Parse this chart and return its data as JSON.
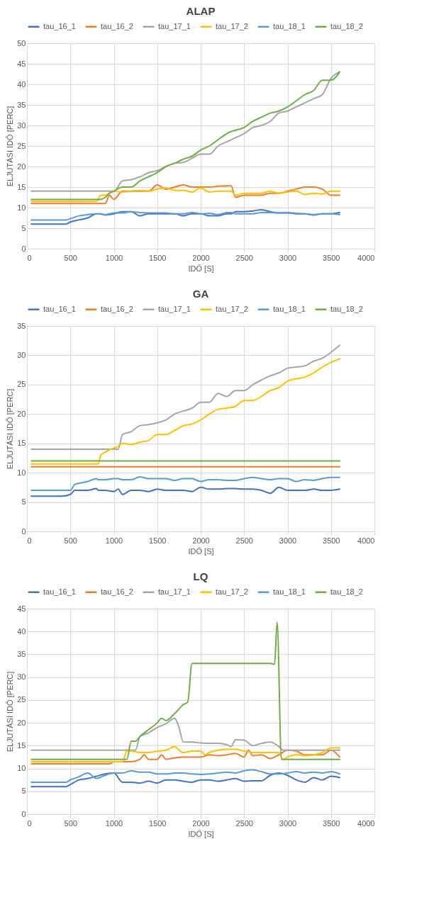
{
  "chart_data": [
    {
      "type": "line",
      "title": "ALAP",
      "xlabel": "IDŐ [S]",
      "ylabel": "ELJUTÁSI IDŐ [PERC]",
      "xlim": [
        0,
        4000
      ],
      "xticks": [
        0,
        500,
        1000,
        1500,
        2000,
        2500,
        3000,
        3500,
        4000
      ],
      "ylim": [
        0,
        50
      ],
      "yticks": [
        0,
        5,
        10,
        15,
        20,
        25,
        30,
        35,
        40,
        45,
        50
      ],
      "grid": true,
      "legend": "top",
      "x": [
        50,
        450,
        500,
        600,
        700,
        800,
        850,
        900,
        950,
        1000,
        1100,
        1200,
        1300,
        1400,
        1500,
        1600,
        1700,
        1800,
        1900,
        2000,
        2100,
        2200,
        2300,
        2350,
        2400,
        2500,
        2600,
        2700,
        2800,
        2900,
        3000,
        3100,
        3200,
        3300,
        3400,
        3500,
        3600
      ],
      "series": [
        {
          "name": "tau_16_1",
          "color": "#4472c4",
          "values": [
            6,
            6,
            6.5,
            7,
            7.5,
            8.5,
            8.5,
            8.2,
            8.3,
            8.5,
            9,
            9,
            8,
            8.5,
            8.5,
            8.5,
            8.5,
            8,
            8.5,
            8.5,
            8,
            8,
            8.5,
            8.5,
            9,
            9,
            9.2,
            9.5,
            9,
            8.7,
            8.7,
            8.5,
            8.5,
            8.2,
            8.5,
            8.5,
            8.8
          ]
        },
        {
          "name": "tau_16_2",
          "color": "#ed7d31",
          "values": [
            11,
            11,
            11,
            11,
            11,
            11,
            11,
            11,
            13,
            12,
            14,
            14,
            14,
            14,
            15.5,
            14.5,
            15,
            15.5,
            15,
            15,
            15,
            15.2,
            15.3,
            15.3,
            12.5,
            13,
            13,
            13,
            13.5,
            13.5,
            14,
            14.5,
            15,
            15,
            14.5,
            13,
            13
          ]
        },
        {
          "name": "tau_17_1",
          "color": "#a5a5a5",
          "values": [
            14,
            14,
            14,
            14,
            14,
            14,
            14,
            14,
            14,
            14,
            16.5,
            16.8,
            17.5,
            18.5,
            19,
            20,
            20.8,
            21,
            22,
            23,
            23,
            25,
            26,
            26.5,
            27,
            28,
            29.5,
            30,
            31,
            33,
            33.5,
            34.5,
            35.5,
            36.5,
            37.5,
            41.5,
            43
          ]
        },
        {
          "name": "tau_17_2",
          "color": "#ffc000",
          "values": [
            11.5,
            11.5,
            11.5,
            11.5,
            11.5,
            11.5,
            13,
            13,
            13.5,
            14,
            13.8,
            14,
            14.2,
            14,
            14.5,
            14.8,
            14.2,
            14.2,
            13.8,
            14.8,
            13.8,
            14,
            14,
            14,
            13,
            13.5,
            13.5,
            13.5,
            14,
            13.5,
            13.8,
            14,
            13.2,
            13.5,
            13.3,
            14,
            14
          ]
        },
        {
          "name": "tau_18_1",
          "color": "#5b9bd5",
          "values": [
            7,
            7,
            7.3,
            8,
            8.3,
            8.5,
            8.4,
            8.3,
            8.5,
            8.7,
            8.7,
            9,
            8.8,
            8.7,
            8.7,
            8.7,
            8.5,
            8.5,
            8.8,
            8.5,
            8.6,
            8.3,
            8.8,
            8.8,
            8.5,
            8.5,
            8.5,
            8.8,
            8.8,
            8.7,
            8.8,
            8.6,
            8.5,
            8.3,
            8.5,
            8.5,
            8.3
          ]
        },
        {
          "name": "tau_18_2",
          "color": "#70ad47",
          "values": [
            12,
            12,
            12,
            12,
            12,
            12,
            12,
            12.5,
            13.5,
            14,
            15,
            15,
            16.5,
            17.5,
            18.5,
            20,
            20.8,
            21.8,
            22.5,
            24,
            25,
            26.5,
            28,
            28.5,
            28.8,
            29.5,
            31,
            32,
            33,
            33.5,
            34.5,
            36,
            37.5,
            38.5,
            41,
            41,
            43
          ]
        }
      ]
    },
    {
      "type": "line",
      "title": "GA",
      "xlabel": "IDŐ [S]",
      "ylabel": "ELJUTÁSI IDŐ [PERC]",
      "xlim": [
        0,
        4000
      ],
      "xticks": [
        0,
        500,
        1000,
        1500,
        2000,
        2500,
        3000,
        3500,
        4000
      ],
      "ylim": [
        0,
        35
      ],
      "yticks": [
        0,
        5,
        10,
        15,
        20,
        25,
        30,
        35
      ],
      "grid": true,
      "legend": "top",
      "x": [
        50,
        400,
        500,
        550,
        600,
        700,
        800,
        820,
        850,
        900,
        1000,
        1050,
        1100,
        1200,
        1300,
        1400,
        1500,
        1600,
        1700,
        1800,
        1900,
        2000,
        2100,
        2200,
        2300,
        2400,
        2500,
        2600,
        2700,
        2800,
        2900,
        3000,
        3100,
        3200,
        3300,
        3400,
        3500,
        3600
      ],
      "series": [
        {
          "name": "tau_16_1",
          "color": "#4472c4",
          "values": [
            6,
            6,
            6.3,
            7,
            7,
            7,
            7.3,
            7,
            7,
            7,
            6.8,
            7.2,
            6.3,
            7,
            7,
            6.8,
            7.2,
            7,
            7,
            7,
            6.8,
            7.5,
            7.2,
            7.2,
            7.3,
            7.3,
            7.2,
            7.2,
            7,
            6.5,
            7.5,
            7,
            7,
            7,
            7.2,
            7,
            7,
            7.2
          ]
        },
        {
          "name": "tau_16_2",
          "color": "#ed7d31",
          "x": [
            50,
            3600
          ],
          "values": [
            11,
            11
          ]
        },
        {
          "name": "tau_17_1",
          "color": "#a5a5a5",
          "values": [
            14,
            14,
            14,
            14,
            14,
            14,
            14,
            14,
            14,
            14,
            14,
            14,
            16.5,
            17,
            18,
            18.2,
            18.5,
            19,
            20,
            20.5,
            21,
            22,
            22,
            23.5,
            23,
            24,
            24,
            25,
            25.8,
            26.5,
            27,
            27.8,
            28,
            28.2,
            29,
            29.5,
            30.5,
            31.7
          ]
        },
        {
          "name": "tau_17_2",
          "color": "#ffc000",
          "values": [
            11.5,
            11.5,
            11.5,
            11.5,
            11.5,
            11.5,
            11.5,
            11.5,
            13,
            13.5,
            14.2,
            14.5,
            15,
            14.8,
            15.2,
            15.5,
            16.5,
            16.5,
            17.2,
            18,
            18.3,
            19,
            20,
            20.8,
            21,
            21.3,
            22.3,
            22.3,
            23,
            24,
            24.5,
            25.6,
            26,
            26.3,
            27,
            28,
            28.8,
            29.4
          ]
        },
        {
          "name": "tau_18_1",
          "color": "#5b9bd5",
          "values": [
            7,
            7,
            7,
            8,
            8.2,
            8.5,
            9,
            8.8,
            8.8,
            8.8,
            9,
            9,
            8.8,
            8.8,
            9.3,
            9,
            9,
            9,
            8.7,
            9,
            9,
            8.5,
            8.8,
            8.8,
            8.7,
            8.7,
            9,
            9.2,
            9,
            8.8,
            9,
            9,
            8.5,
            8.8,
            8.7,
            9,
            9.2,
            9.2
          ]
        },
        {
          "name": "tau_18_2",
          "color": "#70ad47",
          "x": [
            50,
            3600
          ],
          "values": [
            12,
            12
          ]
        }
      ]
    },
    {
      "type": "line",
      "title": "LQ",
      "xlabel": "IDŐ [S]",
      "ylabel": "ELJUTÁSI IDŐ [PERC]",
      "xlim": [
        0,
        4000
      ],
      "xticks": [
        0,
        500,
        1000,
        1500,
        2000,
        2500,
        3000,
        3500,
        4000
      ],
      "ylim": [
        0,
        45
      ],
      "yticks": [
        0,
        5,
        10,
        15,
        20,
        25,
        30,
        35,
        40,
        45
      ],
      "grid": true,
      "legend": "top",
      "x": [
        50,
        450,
        500,
        600,
        700,
        800,
        900,
        1000,
        1100,
        1200,
        1300,
        1400,
        1500,
        1600,
        1700,
        1800,
        1900,
        2000,
        2100,
        2200,
        2300,
        2400,
        2500,
        2600,
        2700,
        2800,
        2900,
        3000,
        3100,
        3200,
        3300,
        3400,
        3500,
        3600
      ],
      "series": [
        {
          "name": "tau_16_1",
          "color": "#4472c4",
          "values": [
            6,
            6,
            6.5,
            7.5,
            7.8,
            8.3,
            8.8,
            9,
            7,
            7,
            6.8,
            7.2,
            6.8,
            7.5,
            7.5,
            7.2,
            7,
            7.5,
            7.5,
            7.2,
            7.5,
            7.8,
            7.2,
            7.3,
            7.3,
            8.5,
            9,
            8.5,
            7.5,
            7,
            8,
            7.5,
            8.3,
            8
          ]
        },
        {
          "name": "tau_16_2",
          "color": "#ed7d31",
          "x": [
            50,
            950,
            1000,
            1100,
            1200,
            1300,
            1350,
            1400,
            1500,
            1550,
            1600,
            1700,
            1800,
            1900,
            2000,
            2100,
            2200,
            2300,
            2400,
            2500,
            2550,
            2600,
            2700,
            2800,
            2900,
            3000,
            3100,
            3200,
            3300,
            3400,
            3500,
            3600
          ],
          "values": [
            11,
            11,
            11.5,
            11.5,
            11.5,
            12,
            13,
            12,
            12,
            13,
            12,
            12.3,
            12.5,
            12.5,
            12.5,
            13,
            12.8,
            13,
            13.3,
            12.5,
            14,
            12.8,
            13,
            12.2,
            13,
            14,
            13.8,
            13,
            13,
            13,
            14,
            12.5
          ]
        },
        {
          "name": "tau_17_1",
          "color": "#a5a5a5",
          "x": [
            50,
            1250,
            1300,
            1400,
            1500,
            1600,
            1700,
            1750,
            1800,
            1900,
            2000,
            2100,
            2200,
            2300,
            2350,
            2400,
            2500,
            2600,
            2700,
            2800,
            2900,
            2950,
            3000,
            3600
          ],
          "values": [
            14,
            14,
            17,
            17.8,
            19,
            19.8,
            21,
            19,
            15.8,
            15.8,
            15.6,
            15.5,
            15.5,
            15.2,
            14.8,
            16.3,
            16.2,
            15,
            15.5,
            15.8,
            14.8,
            14,
            14,
            14
          ]
        },
        {
          "name": "tau_17_2",
          "color": "#ffc000",
          "x": [
            50,
            1050,
            1100,
            1150,
            1200,
            1300,
            1400,
            1500,
            1600,
            1700,
            1750,
            1800,
            1900,
            2000,
            2050,
            2100,
            2200,
            2300,
            2400,
            2500,
            2600,
            2700,
            2800,
            2900,
            2950,
            3000,
            3100,
            3200,
            3300,
            3400,
            3500,
            3600
          ],
          "values": [
            11.5,
            11.5,
            11.5,
            13.8,
            13.8,
            13.5,
            13.5,
            13.8,
            14,
            14.8,
            14,
            13.5,
            13.8,
            13.8,
            13,
            13.5,
            14,
            14.2,
            14.2,
            13.8,
            13.5,
            13.5,
            13.5,
            13.5,
            12,
            12.5,
            13,
            12.8,
            13,
            13.5,
            14.5,
            14.5
          ]
        },
        {
          "name": "tau_18_1",
          "color": "#5b9bd5",
          "values": [
            7,
            7,
            7.5,
            8.2,
            9,
            7.8,
            8.5,
            9,
            9,
            9.5,
            9.2,
            9.2,
            8.8,
            8.8,
            9,
            9,
            8.8,
            8.7,
            8.8,
            9,
            9.2,
            9,
            9.5,
            9.7,
            9.3,
            8.8,
            8.8,
            9,
            9.3,
            9,
            9.2,
            9,
            9.3,
            8.8
          ]
        },
        {
          "name": "tau_18_2",
          "color": "#70ad47",
          "x": [
            50,
            1150,
            1200,
            1250,
            1300,
            1400,
            1500,
            1550,
            1600,
            1700,
            1800,
            1850,
            1900,
            1950,
            2800,
            2850,
            2880,
            2930,
            3600
          ],
          "values": [
            12,
            12,
            16,
            16,
            17,
            18.5,
            20,
            21,
            20.5,
            22,
            24,
            24.5,
            33,
            33,
            33,
            32.8,
            42,
            12,
            12
          ]
        }
      ]
    }
  ]
}
